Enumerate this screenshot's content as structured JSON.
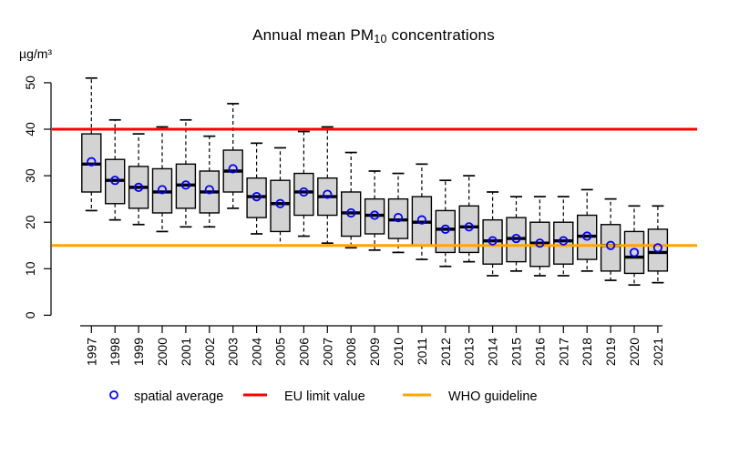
{
  "title": {
    "prefix": "Annual mean PM",
    "subscript": "10",
    "suffix": " concentrations"
  },
  "y_axis": {
    "unit_label": "µg/m³",
    "tick_values": [
      0,
      10,
      20,
      30,
      40,
      50
    ]
  },
  "x_axis": {
    "tick_labels": [
      "1997",
      "1998",
      "1999",
      "2000",
      "2001",
      "2002",
      "2003",
      "2004",
      "2005",
      "2006",
      "2007",
      "2008",
      "2009",
      "2010",
      "2011",
      "2012",
      "2013",
      "2014",
      "2015",
      "2016",
      "2017",
      "2018",
      "2019",
      "2020",
      "2021"
    ]
  },
  "legend": {
    "items": [
      {
        "symbol": "open-circle",
        "label": "spatial average",
        "color": "#0000ff"
      },
      {
        "symbol": "line",
        "label": "EU limit value",
        "color": "#ff0000"
      },
      {
        "symbol": "line",
        "label": "WHO guideline",
        "color": "#ffa500"
      }
    ]
  },
  "colors": {
    "background": "#ffffff",
    "box_fill": "#d3d3d3",
    "box_border": "#000000",
    "median": "#000000",
    "whisker": "#000000",
    "mean_point": "#0000ff",
    "eu_limit_line": "#ff0000",
    "who_guideline_line": "#ffa500",
    "axis": "#000000",
    "text": "#000000"
  },
  "chart_data": {
    "type": "boxplot",
    "title": "Annual mean PM10 concentrations",
    "ylabel": "µg/m³",
    "xlabel": "",
    "ylim": [
      0,
      52
    ],
    "grid": false,
    "legend_position": "bottom",
    "categories": [
      "1997",
      "1998",
      "1999",
      "2000",
      "2001",
      "2002",
      "2003",
      "2004",
      "2005",
      "2006",
      "2007",
      "2008",
      "2009",
      "2010",
      "2011",
      "2012",
      "2013",
      "2014",
      "2015",
      "2016",
      "2017",
      "2018",
      "2019",
      "2020",
      "2021"
    ],
    "reference_lines": [
      {
        "label": "EU limit value",
        "value": 40,
        "color": "#ff0000"
      },
      {
        "label": "WHO guideline",
        "value": 15,
        "color": "#ffa500"
      }
    ],
    "mean_series": {
      "name": "spatial average",
      "marker": "open-circle",
      "color": "#0000ff"
    },
    "boxes": [
      {
        "year": "1997",
        "whisker_low": 22.5,
        "q1": 26.5,
        "median": 32.5,
        "q3": 39.0,
        "whisker_high": 51.0,
        "mean": 33.0
      },
      {
        "year": "1998",
        "whisker_low": 20.5,
        "q1": 24.0,
        "median": 29.0,
        "q3": 33.5,
        "whisker_high": 42.0,
        "mean": 29.0
      },
      {
        "year": "1999",
        "whisker_low": 19.5,
        "q1": 23.0,
        "median": 27.5,
        "q3": 32.0,
        "whisker_high": 39.0,
        "mean": 27.5
      },
      {
        "year": "2000",
        "whisker_low": 18.0,
        "q1": 22.0,
        "median": 26.5,
        "q3": 31.5,
        "whisker_high": 40.5,
        "mean": 27.0
      },
      {
        "year": "2001",
        "whisker_low": 19.0,
        "q1": 23.0,
        "median": 28.0,
        "q3": 32.5,
        "whisker_high": 42.0,
        "mean": 28.0
      },
      {
        "year": "2002",
        "whisker_low": 19.0,
        "q1": 22.0,
        "median": 26.5,
        "q3": 31.0,
        "whisker_high": 38.5,
        "mean": 27.0
      },
      {
        "year": "2003",
        "whisker_low": 23.0,
        "q1": 26.5,
        "median": 31.0,
        "q3": 35.5,
        "whisker_high": 45.5,
        "mean": 31.5
      },
      {
        "year": "2004",
        "whisker_low": 17.5,
        "q1": 21.0,
        "median": 25.5,
        "q3": 29.5,
        "whisker_high": 37.0,
        "mean": 25.5
      },
      {
        "year": "2005",
        "whisker_low": 15.0,
        "q1": 18.0,
        "median": 24.0,
        "q3": 29.0,
        "whisker_high": 36.0,
        "mean": 24.0
      },
      {
        "year": "2006",
        "whisker_low": 17.0,
        "q1": 21.5,
        "median": 26.5,
        "q3": 30.5,
        "whisker_high": 39.5,
        "mean": 26.5
      },
      {
        "year": "2007",
        "whisker_low": 15.5,
        "q1": 21.5,
        "median": 25.5,
        "q3": 29.5,
        "whisker_high": 40.5,
        "mean": 26.0
      },
      {
        "year": "2008",
        "whisker_low": 14.5,
        "q1": 17.0,
        "median": 22.0,
        "q3": 26.5,
        "whisker_high": 35.0,
        "mean": 22.0
      },
      {
        "year": "2009",
        "whisker_low": 14.0,
        "q1": 17.5,
        "median": 21.5,
        "q3": 25.0,
        "whisker_high": 31.0,
        "mean": 21.5
      },
      {
        "year": "2010",
        "whisker_low": 13.5,
        "q1": 16.5,
        "median": 20.5,
        "q3": 25.0,
        "whisker_high": 30.5,
        "mean": 21.0
      },
      {
        "year": "2011",
        "whisker_low": 12.0,
        "q1": 15.0,
        "median": 20.0,
        "q3": 25.5,
        "whisker_high": 32.5,
        "mean": 20.5
      },
      {
        "year": "2012",
        "whisker_low": 10.5,
        "q1": 13.5,
        "median": 18.5,
        "q3": 22.5,
        "whisker_high": 29.0,
        "mean": 18.5
      },
      {
        "year": "2013",
        "whisker_low": 11.5,
        "q1": 13.5,
        "median": 19.0,
        "q3": 23.5,
        "whisker_high": 30.0,
        "mean": 19.0
      },
      {
        "year": "2014",
        "whisker_low": 8.5,
        "q1": 11.0,
        "median": 16.0,
        "q3": 20.5,
        "whisker_high": 26.5,
        "mean": 16.0
      },
      {
        "year": "2015",
        "whisker_low": 9.5,
        "q1": 11.5,
        "median": 16.5,
        "q3": 21.0,
        "whisker_high": 25.5,
        "mean": 16.5
      },
      {
        "year": "2016",
        "whisker_low": 8.5,
        "q1": 10.5,
        "median": 15.5,
        "q3": 20.0,
        "whisker_high": 25.5,
        "mean": 15.5
      },
      {
        "year": "2017",
        "whisker_low": 8.5,
        "q1": 11.0,
        "median": 16.0,
        "q3": 20.0,
        "whisker_high": 25.5,
        "mean": 16.0
      },
      {
        "year": "2018",
        "whisker_low": 9.5,
        "q1": 12.0,
        "median": 17.0,
        "q3": 21.5,
        "whisker_high": 27.0,
        "mean": 17.0
      },
      {
        "year": "2019",
        "whisker_low": 7.5,
        "q1": 9.5,
        "median": 15.0,
        "q3": 19.5,
        "whisker_high": 25.0,
        "mean": 15.0
      },
      {
        "year": "2020",
        "whisker_low": 6.5,
        "q1": 9.0,
        "median": 12.5,
        "q3": 18.0,
        "whisker_high": 23.5,
        "mean": 13.5
      },
      {
        "year": "2021",
        "whisker_low": 7.0,
        "q1": 9.5,
        "median": 13.5,
        "q3": 18.5,
        "whisker_high": 23.5,
        "mean": 14.5
      }
    ]
  }
}
